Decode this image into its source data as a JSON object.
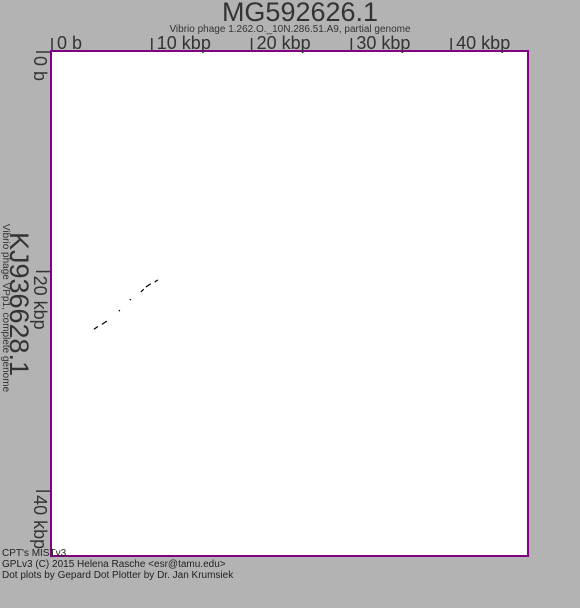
{
  "chart_data": {
    "type": "scatter",
    "title": "MG592626.1",
    "subtitle": "Vibrio phage 1.262.O._10N.286.51.A9, partial genome",
    "y_title": "KJ936628.1",
    "y_subtitle": "Vibrio phage VPp1, complete genome",
    "x_ticks": [
      {
        "value": 0,
        "label": "0 b"
      },
      {
        "value": 10000,
        "label": "10 kbp"
      },
      {
        "value": 20000,
        "label": "20 kbp"
      },
      {
        "value": 30000,
        "label": "30 kbp"
      },
      {
        "value": 40000,
        "label": "40 kbp"
      }
    ],
    "y_ticks": [
      {
        "value": 0,
        "label": "0 b"
      },
      {
        "value": 20000,
        "label": "20 kbp"
      },
      {
        "value": 40000,
        "label": "40 kbp"
      }
    ],
    "xlim": [
      0,
      47800
    ],
    "ylim": [
      0,
      46000
    ],
    "segments": [
      {
        "x1": 4300,
        "y1": 25350,
        "x2": 4700,
        "y2": 25100
      },
      {
        "x1": 5100,
        "y1": 24900,
        "x2": 5600,
        "y2": 24600
      },
      {
        "x1": 6800,
        "y1": 23700,
        "x2": 6900,
        "y2": 23600
      },
      {
        "x1": 7900,
        "y1": 22700,
        "x2": 8000,
        "y2": 22600
      },
      {
        "x1": 9000,
        "y1": 21950,
        "x2": 9300,
        "y2": 21700
      },
      {
        "x1": 9500,
        "y1": 21500,
        "x2": 10000,
        "y2": 21200
      },
      {
        "x1": 10400,
        "y1": 21050,
        "x2": 10700,
        "y2": 20850
      }
    ],
    "colors": {
      "background": "#b3b3b3",
      "plot_background": "#ffffff",
      "frame": "#800080",
      "text": "#222222",
      "points": "#000000"
    }
  },
  "footer": {
    "line1": "CPT's MISTv3",
    "line2": "GPLv3 (C) 2015 Helena Rasche <esr@tamu.edu>",
    "line3": "Dot plots by Gepard Dot Plotter by Dr. Jan Krumsiek"
  }
}
